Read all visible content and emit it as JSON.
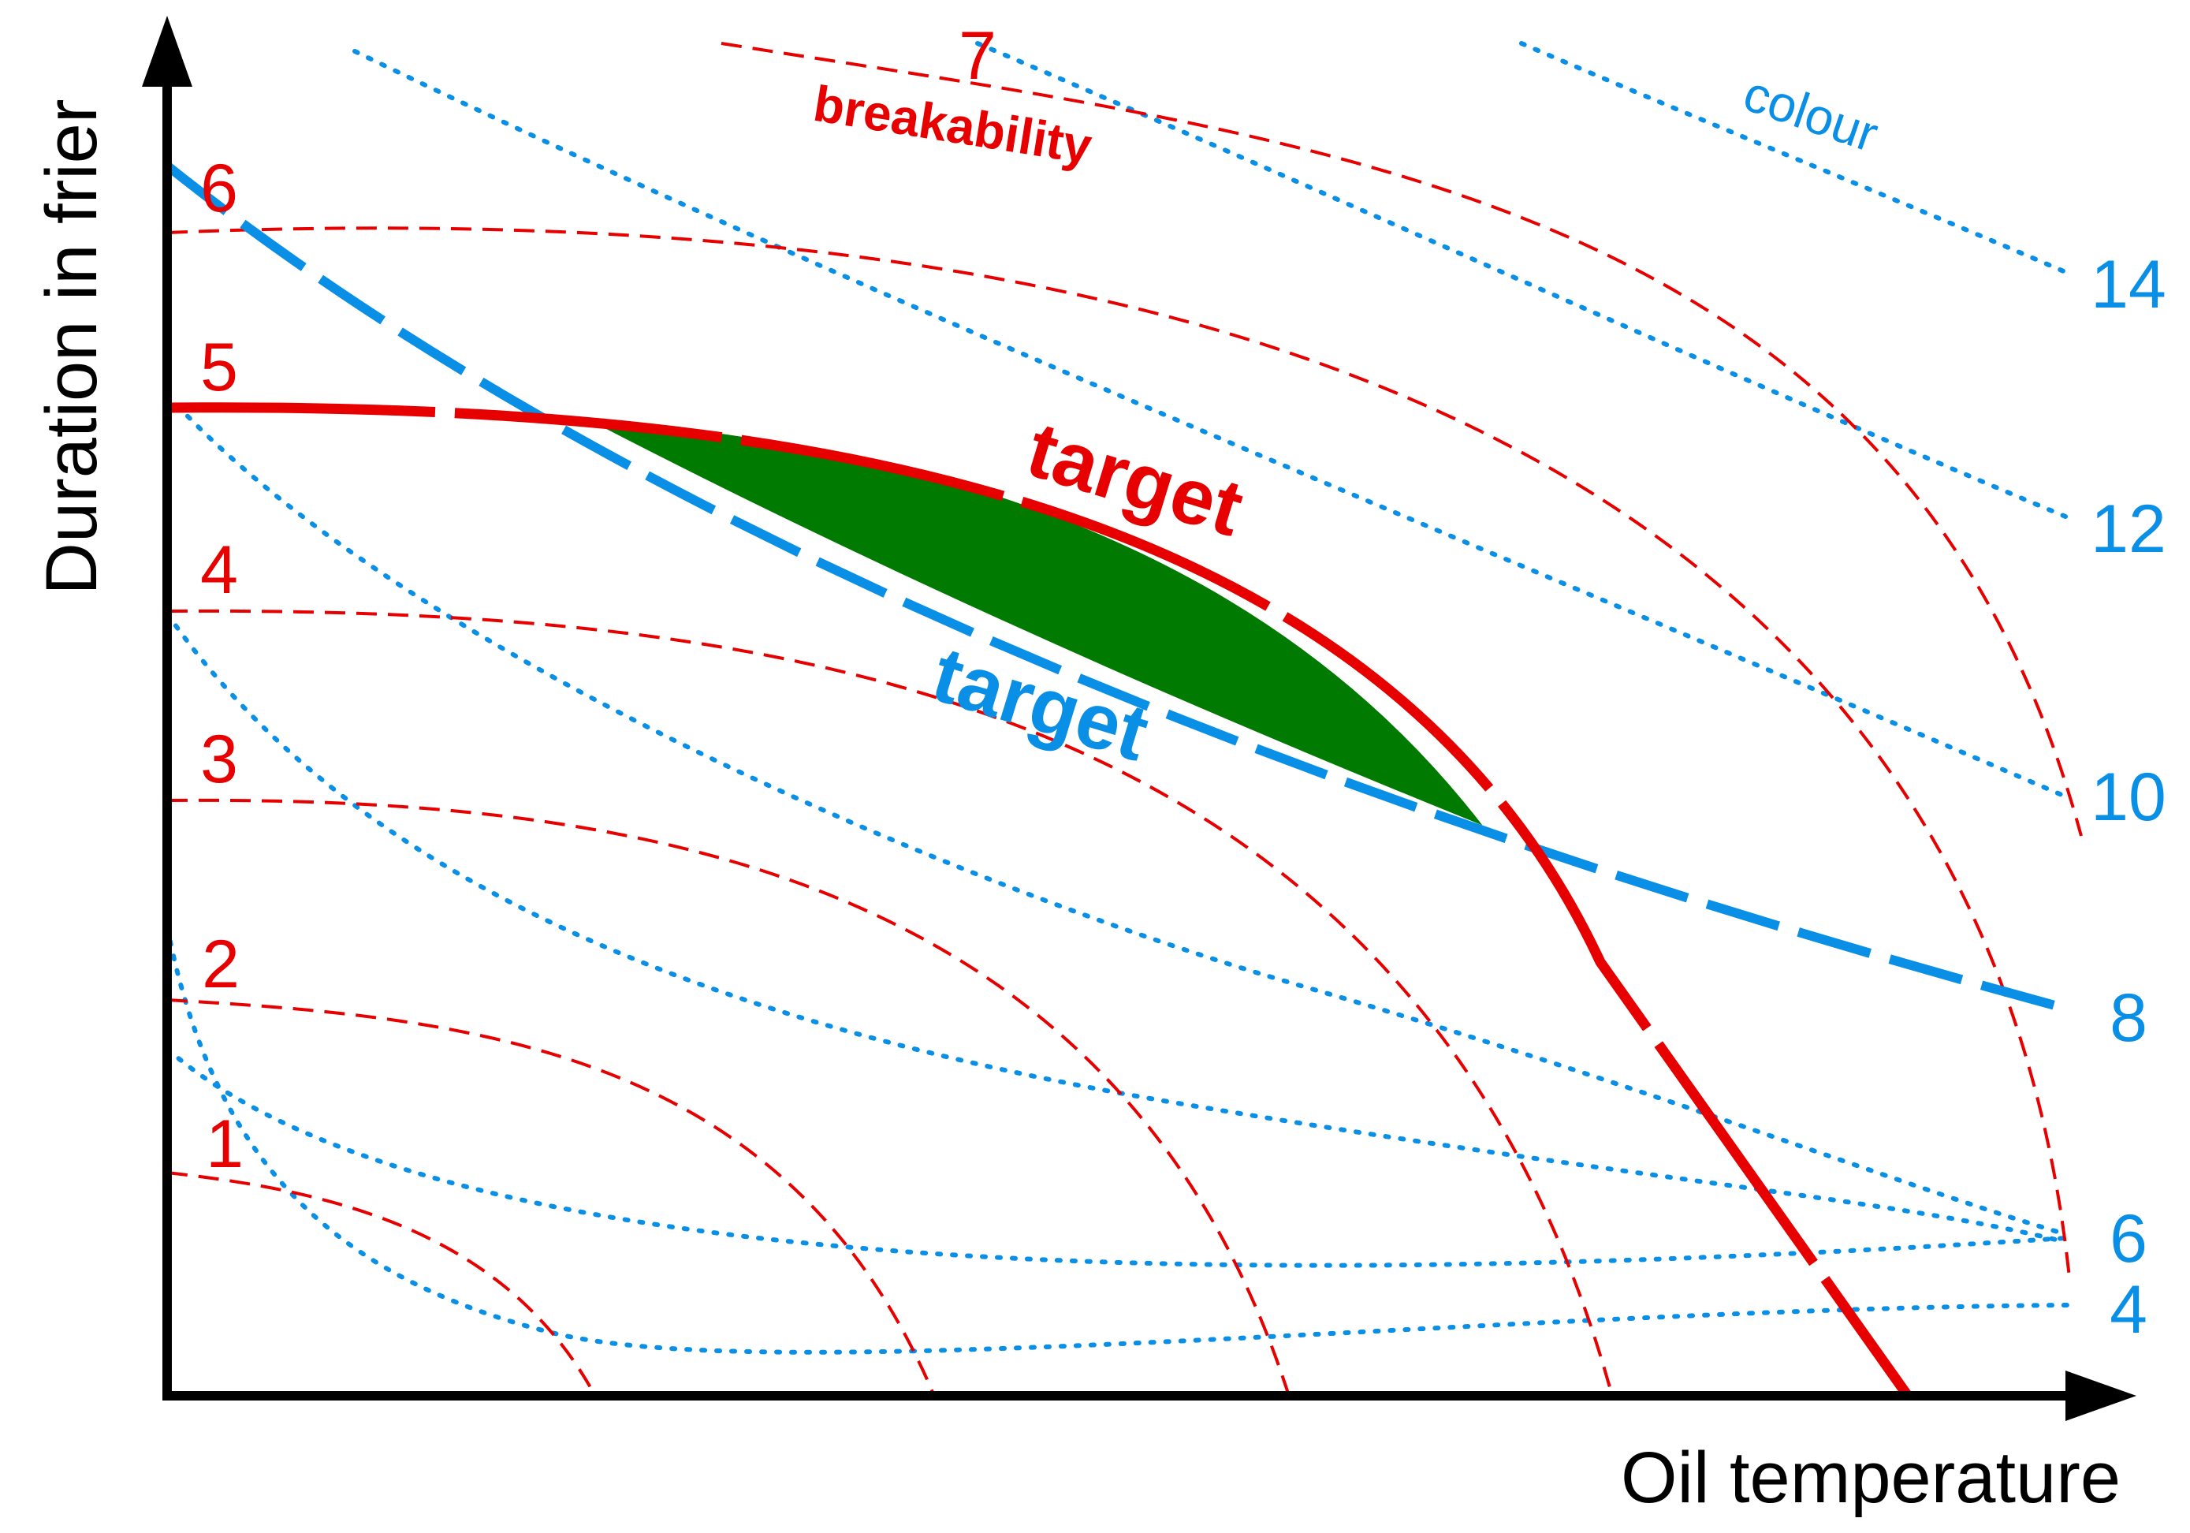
{
  "axes": {
    "x_label": "Oil temperature",
    "y_label": "Duration in frier"
  },
  "breakability": {
    "label": "breakability",
    "color": "#e60000",
    "contours": [
      {
        "label": "1"
      },
      {
        "label": "2"
      },
      {
        "label": "3"
      },
      {
        "label": "4"
      },
      {
        "label": "5"
      },
      {
        "label": "6"
      },
      {
        "label": "7"
      }
    ],
    "target_label": "target"
  },
  "colour": {
    "label": "colour",
    "color": "#0a8fe6",
    "contours": [
      {
        "label": "4"
      },
      {
        "label": "6"
      },
      {
        "label": "8"
      },
      {
        "label": "10"
      },
      {
        "label": "12"
      },
      {
        "label": "14"
      }
    ],
    "target_label": "target"
  },
  "target_region": {
    "color": "#007a00"
  }
}
